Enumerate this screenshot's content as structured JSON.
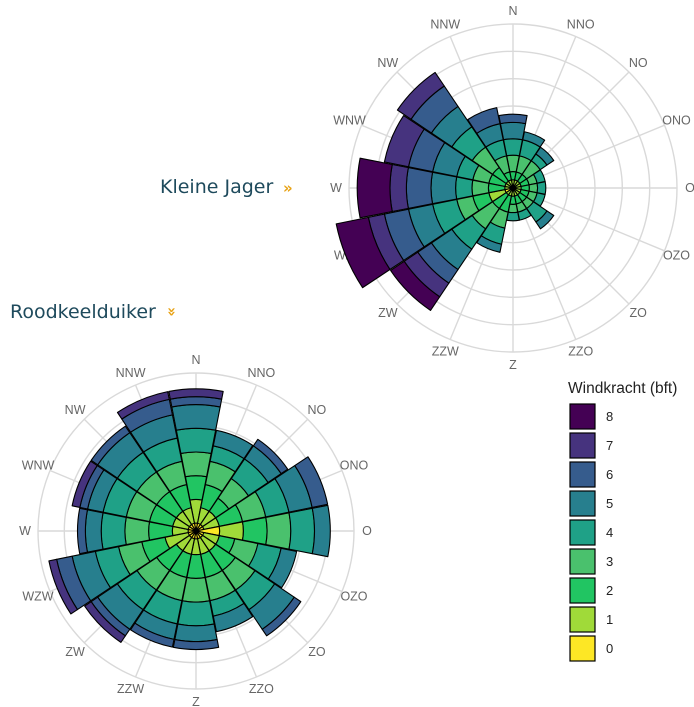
{
  "charts": {
    "kleine_jager": {
      "title": "Kleine Jager",
      "arrow": "»"
    },
    "roodkeelduiker": {
      "title": "Roodkeelduiker",
      "arrow": "»"
    }
  },
  "legend": {
    "title": "Windkracht (bft)",
    "items": [
      {
        "label": "8",
        "color": "#440154"
      },
      {
        "label": "7",
        "color": "#46337e"
      },
      {
        "label": "6",
        "color": "#365c8d"
      },
      {
        "label": "5",
        "color": "#277f8e"
      },
      {
        "label": "4",
        "color": "#1fa187"
      },
      {
        "label": "3",
        "color": "#4ac16d"
      },
      {
        "label": "2",
        "color": "#21c562"
      },
      {
        "label": "1",
        "color": "#a0da39"
      },
      {
        "label": "0",
        "color": "#fde725"
      }
    ]
  },
  "chart_data": [
    {
      "type": "radial-stacked-bar",
      "title": "Kleine Jager",
      "directions": [
        "N",
        "NNO",
        "NO",
        "ONO",
        "O",
        "OZO",
        "ZO",
        "ZZO",
        "Z",
        "ZZW",
        "ZW",
        "WZW",
        "W",
        "WNW",
        "NW",
        "NNW"
      ],
      "stack_order": [
        "0",
        "1",
        "2",
        "3",
        "4",
        "5",
        "6",
        "7",
        "8"
      ],
      "series": [
        {
          "direction": "N",
          "values": [
            0,
            0.5,
            0.5,
            1,
            1,
            1,
            0.5,
            0,
            0
          ]
        },
        {
          "direction": "NNO",
          "values": [
            0,
            0.5,
            0.5,
            1,
            1,
            0.5,
            0,
            0,
            0
          ]
        },
        {
          "direction": "NO",
          "values": [
            0,
            0.5,
            0.5,
            1,
            0.5,
            0.5,
            0,
            0,
            0
          ]
        },
        {
          "direction": "ONO",
          "values": [
            0,
            0.5,
            0.5,
            0.5,
            0.5,
            0,
            0,
            0,
            0
          ]
        },
        {
          "direction": "O",
          "values": [
            0,
            0.5,
            0.5,
            0.5,
            0.5,
            0,
            0,
            0,
            0
          ]
        },
        {
          "direction": "OZO",
          "values": [
            0,
            0.5,
            0.5,
            0.5,
            0.5,
            0,
            0,
            0,
            0
          ]
        },
        {
          "direction": "ZO",
          "values": [
            0,
            0.5,
            0.5,
            0.5,
            1,
            0.5,
            0,
            0,
            0
          ]
        },
        {
          "direction": "ZZO",
          "values": [
            0,
            0.5,
            0.5,
            0.5,
            0.5,
            0,
            0,
            0,
            0
          ]
        },
        {
          "direction": "Z",
          "values": [
            0,
            0.5,
            0.5,
            0.5,
            0.5,
            0,
            0,
            0,
            0
          ]
        },
        {
          "direction": "ZZW",
          "values": [
            0,
            0.5,
            1,
            1,
            1,
            0.5,
            0,
            0,
            0
          ]
        },
        {
          "direction": "ZW",
          "values": [
            0,
            0.5,
            1,
            1.5,
            1.5,
            1.5,
            1,
            1,
            1
          ]
        },
        {
          "direction": "WZW",
          "values": [
            0.5,
            1,
            1,
            1,
            1.5,
            1.5,
            1.5,
            1,
            2
          ]
        },
        {
          "direction": "W",
          "values": [
            0,
            0.5,
            1,
            1,
            1,
            1.5,
            1.5,
            1,
            2
          ]
        },
        {
          "direction": "WNW",
          "values": [
            0,
            0.5,
            1,
            1,
            1,
            1.5,
            1.5,
            1.5,
            0
          ]
        },
        {
          "direction": "NW",
          "values": [
            0,
            0.5,
            1,
            1.5,
            1.5,
            1.5,
            1.5,
            1,
            0
          ]
        },
        {
          "direction": "NNW",
          "values": [
            0,
            0.5,
            0.5,
            1,
            1,
            1,
            1,
            0,
            0
          ]
        }
      ]
    },
    {
      "type": "radial-stacked-bar",
      "title": "Roodkeelduiker",
      "directions": [
        "N",
        "NNO",
        "NO",
        "ONO",
        "O",
        "OZO",
        "ZO",
        "ZZO",
        "Z",
        "ZZW",
        "ZW",
        "WZW",
        "W",
        "WNW",
        "NW",
        "NNW"
      ],
      "stack_order": [
        "0",
        "1",
        "2",
        "3",
        "4",
        "5",
        "6",
        "7",
        "8"
      ],
      "series": [
        {
          "direction": "N",
          "values": [
            0.5,
            1.5,
            1.5,
            1.5,
            1.5,
            1.5,
            0.5,
            0.5,
            0
          ]
        },
        {
          "direction": "NNO",
          "values": [
            0.5,
            1,
            1.5,
            1.5,
            1,
            1,
            0,
            0,
            0
          ]
        },
        {
          "direction": "NO",
          "values": [
            0.5,
            1,
            1,
            1.5,
            1.5,
            1,
            0.5,
            0,
            0
          ]
        },
        {
          "direction": "ONO",
          "values": [
            0.5,
            1,
            1.5,
            1.5,
            1.5,
            1.5,
            1,
            0,
            0
          ]
        },
        {
          "direction": "O",
          "values": [
            1.5,
            1.5,
            1.5,
            1.5,
            1.5,
            1,
            0,
            0,
            0
          ]
        },
        {
          "direction": "OZO",
          "values": [
            0.5,
            1,
            1,
            1.5,
            1.5,
            1,
            0,
            0,
            0
          ]
        },
        {
          "direction": "ZO",
          "values": [
            0.5,
            1,
            1.5,
            1.5,
            1.5,
            1.5,
            0.5,
            0,
            0
          ]
        },
        {
          "direction": "ZZO",
          "values": [
            0.5,
            1,
            1.5,
            1.5,
            1,
            1,
            0,
            0,
            0
          ]
        },
        {
          "direction": "Z",
          "values": [
            0.5,
            1,
            1.5,
            1.5,
            1.5,
            1,
            0.5,
            0,
            0
          ]
        },
        {
          "direction": "ZZW",
          "values": [
            0.5,
            1,
            1.5,
            1.5,
            1.5,
            1,
            0.5,
            0,
            0
          ]
        },
        {
          "direction": "ZW",
          "values": [
            0.5,
            1,
            1.5,
            1.5,
            1.5,
            1.5,
            0.5,
            0.5,
            0
          ]
        },
        {
          "direction": "WZW",
          "values": [
            0.5,
            1.5,
            1.5,
            1.5,
            1.5,
            1.5,
            1,
            0.5,
            0
          ]
        },
        {
          "direction": "W",
          "values": [
            0.5,
            1,
            1.5,
            1.5,
            1.5,
            1,
            0.5,
            0,
            0
          ]
        },
        {
          "direction": "WNW",
          "values": [
            0.5,
            1,
            1.5,
            1.5,
            1.5,
            1,
            0.5,
            0.5,
            0
          ]
        },
        {
          "direction": "NW",
          "values": [
            0.5,
            1,
            1.5,
            1.5,
            1.5,
            1.5,
            0.5,
            0,
            0
          ]
        },
        {
          "direction": "NNW",
          "values": [
            0.5,
            1,
            1.5,
            1.5,
            1.5,
            1.5,
            1,
            0.5,
            0
          ]
        }
      ]
    }
  ]
}
